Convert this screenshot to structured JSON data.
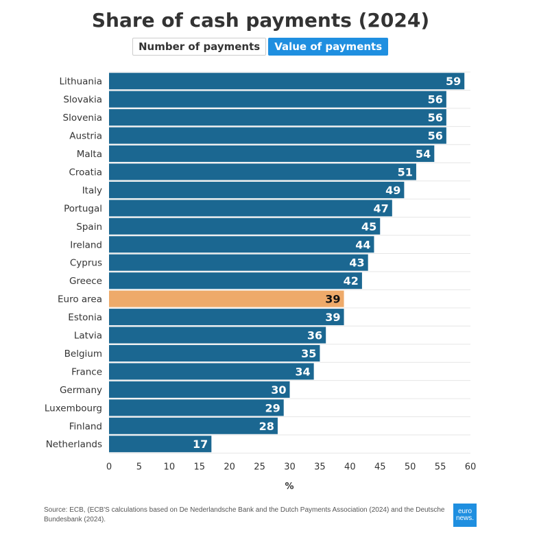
{
  "title": "Share of cash payments (2024)",
  "tabs": [
    {
      "label": "Number of payments",
      "active": false
    },
    {
      "label": "Value of payments",
      "active": true
    }
  ],
  "source": "Source: ECB, (ECB'S calculations based on De Nederlandsche Bank and the Dutch Payments Association (2024) and the Deutsche Bundesbank (2024).",
  "logo": {
    "line1": "euro",
    "line2": "news."
  },
  "colors": {
    "bar": "#1b6791",
    "highlight": "#eeaa6a",
    "tab_active": "#1f8fe0"
  },
  "chart_data": {
    "type": "bar",
    "orientation": "horizontal",
    "categories": [
      "Lithuania",
      "Slovakia",
      "Slovenia",
      "Austria",
      "Malta",
      "Croatia",
      "Italy",
      "Portugal",
      "Spain",
      "Ireland",
      "Cyprus",
      "Greece",
      "Euro area",
      "Estonia",
      "Latvia",
      "Belgium",
      "France",
      "Germany",
      "Luxembourg",
      "Finland",
      "Netherlands"
    ],
    "values": [
      59,
      56,
      56,
      56,
      54,
      51,
      49,
      47,
      45,
      44,
      43,
      42,
      39,
      39,
      36,
      35,
      34,
      30,
      29,
      28,
      17
    ],
    "highlight": "Euro area",
    "xlabel": "%",
    "xlim": [
      0,
      60
    ],
    "xticks": [
      "0",
      "5",
      "10",
      "15",
      "20",
      "25",
      "30",
      "35",
      "40",
      "45",
      "50",
      "55",
      "60"
    ],
    "grid": true,
    "data_labels": true
  }
}
